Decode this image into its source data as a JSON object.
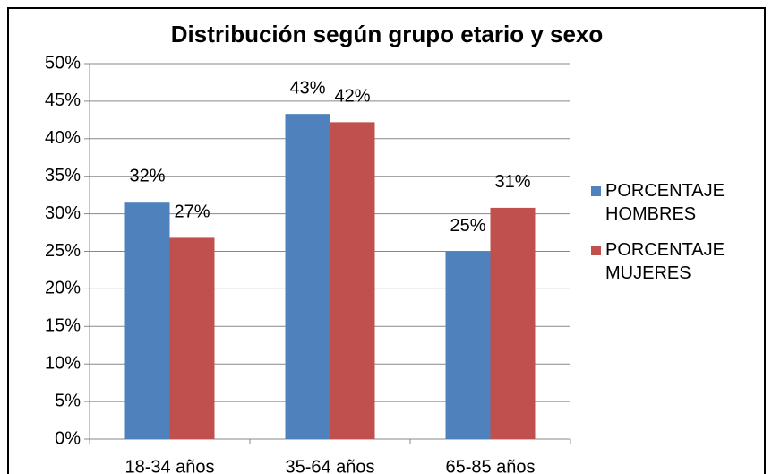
{
  "chart_data": {
    "type": "bar",
    "title": "Distribución según grupo etario y sexo",
    "categories": [
      "18-34 años",
      "35-64 años",
      "65-85 años"
    ],
    "series": [
      {
        "name": "PORCENTAJE HOMBRES",
        "color": "#4f81bd",
        "values": [
          31.6,
          43.3,
          25
        ],
        "value_labels": [
          "32%",
          "43%",
          "25%"
        ]
      },
      {
        "name": "PORCENTAJE MUJERES",
        "color": "#c0504d",
        "values": [
          26.8,
          42.2,
          30.8
        ],
        "value_labels": [
          "27%",
          "42%",
          "31%"
        ]
      }
    ],
    "ylim": [
      0,
      50
    ],
    "yticks": [
      {
        "value": 0,
        "label": "0%"
      },
      {
        "value": 5,
        "label": "5%"
      },
      {
        "value": 10,
        "label": "10%"
      },
      {
        "value": 15,
        "label": "15%"
      },
      {
        "value": 20,
        "label": "20%"
      },
      {
        "value": 25,
        "label": "25%"
      },
      {
        "value": 30,
        "label": "30%"
      },
      {
        "value": 35,
        "label": "35%"
      },
      {
        "value": 40,
        "label": "40%"
      },
      {
        "value": 45,
        "label": "45%"
      },
      {
        "value": 50,
        "label": "50%"
      }
    ],
    "grid": true,
    "legend": "right"
  }
}
